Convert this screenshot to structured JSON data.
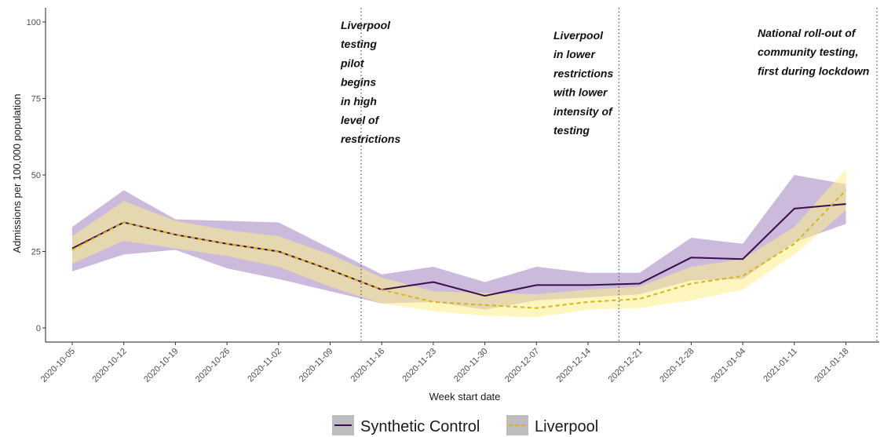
{
  "chart_data": {
    "type": "line",
    "xlabel": "Week start date",
    "ylabel": "Admissions per 100,000 population",
    "ylim": [
      0,
      100
    ],
    "yticks": [
      0,
      25,
      50,
      75,
      100
    ],
    "categories": [
      "2020-10-05",
      "2020-10-12",
      "2020-10-19",
      "2020-10-26",
      "2020-11-02",
      "2020-11-09",
      "2020-11-16",
      "2020-11-23",
      "2020-11-30",
      "2020-12-07",
      "2020-12-14",
      "2020-12-21",
      "2020-12-28",
      "2021-01-04",
      "2021-01-11",
      "2021-01-18"
    ],
    "series": [
      {
        "name": "Synthetic Control",
        "line_style": "solid",
        "values": [
          26,
          34.5,
          30.5,
          27.5,
          25,
          19,
          12.5,
          15,
          10.5,
          14,
          14,
          14.5,
          23,
          22.5,
          39,
          40.5
        ],
        "lower": [
          18.5,
          24,
          25.5,
          19.5,
          16,
          12,
          8,
          8.5,
          6,
          9,
          10,
          11,
          15.5,
          16,
          28,
          34
        ],
        "upper": [
          33,
          45,
          35.5,
          35,
          34.5,
          26,
          17.5,
          20,
          15,
          20,
          18,
          18,
          29.5,
          27.5,
          50,
          47
        ]
      },
      {
        "name": "Liverpool",
        "line_style": "dashed",
        "values": [
          25.5,
          34.5,
          30.5,
          27.5,
          25,
          19,
          12.5,
          8.5,
          7.5,
          6.5,
          8.5,
          9.5,
          14.5,
          17,
          27.5,
          45
        ],
        "lower": [
          21,
          28.5,
          26,
          23.5,
          20,
          13.5,
          8,
          5.5,
          4,
          3.5,
          6,
          6.5,
          9,
          12.5,
          24,
          38.5
        ],
        "upper": [
          30,
          41.5,
          35,
          32,
          30,
          24,
          16.5,
          12,
          11.5,
          11,
          12.5,
          13.5,
          20,
          22.5,
          33,
          52
        ]
      }
    ],
    "vlines": [
      5.6,
      10.6,
      15.6
    ],
    "annotations": [
      {
        "vline": 0,
        "lines": [
          "Liverpool",
          "testing",
          "pilot",
          "begins",
          "in high",
          "level of",
          "restrictions"
        ]
      },
      {
        "vline": 1,
        "lines": [
          "Liverpool",
          "in lower",
          "restrictions",
          "with lower",
          "intensity of",
          "testing"
        ]
      },
      {
        "vline": 2,
        "lines": [
          "National roll-out of",
          "community testing,",
          "first during lockdown"
        ]
      }
    ],
    "legend": {
      "placement": "bottom"
    },
    "colors": {
      "synthetic_line": "#3b0f4e",
      "synthetic_band": "#b9a3cf",
      "liverpool_line": "#d9b21c",
      "liverpool_band": "#fbee8a",
      "legend_key_fill": "#bdbdbd"
    },
    "grid": false
  }
}
